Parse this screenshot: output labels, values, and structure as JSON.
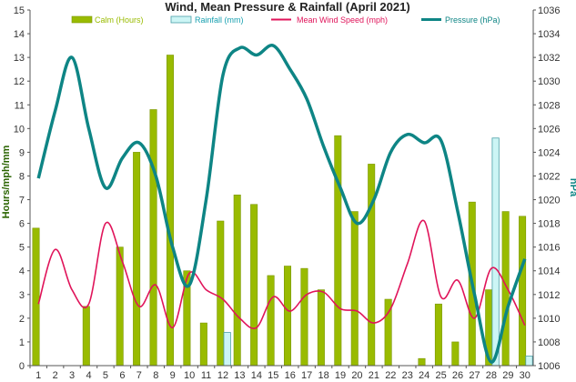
{
  "chart_data": {
    "type": "bar+line",
    "title": "Wind, Mean Pressure & Rainfall (April 2021)",
    "ylabel_left": "Hours/mph/mm",
    "ylabel_right": "hPa",
    "ylim_left": [
      0,
      15
    ],
    "ylim_right": [
      1006,
      1036
    ],
    "yticks_left": [
      "0",
      "1",
      "2",
      "3",
      "4",
      "5",
      "6",
      "7",
      "8",
      "9",
      "10",
      "11",
      "12",
      "13",
      "14",
      "15"
    ],
    "yticks_right": [
      "1006",
      "1008",
      "1010",
      "1012",
      "1014",
      "1016",
      "1018",
      "1020",
      "1022",
      "1024",
      "1026",
      "1028",
      "1030",
      "1032",
      "1034",
      "1036"
    ],
    "categories": [
      "1",
      "2",
      "3",
      "4",
      "5",
      "6",
      "7",
      "8",
      "9",
      "10",
      "11",
      "12",
      "13",
      "14",
      "15",
      "16",
      "17",
      "18",
      "19",
      "20",
      "21",
      "22",
      "23",
      "24",
      "25",
      "26",
      "27",
      "28",
      "29",
      "30"
    ],
    "grid": false,
    "legend_position": "top",
    "series": [
      {
        "name": "Calm (Hours)",
        "kind": "bar",
        "axis": "left",
        "color": "#99bb00",
        "values": [
          5.8,
          0,
          0,
          2.5,
          0,
          5.0,
          9.0,
          10.8,
          13.1,
          4.0,
          1.8,
          6.1,
          7.2,
          6.8,
          3.8,
          4.2,
          4.1,
          3.2,
          9.7,
          6.5,
          8.5,
          2.8,
          0,
          0.3,
          2.6,
          1.0,
          6.9,
          3.2,
          6.5,
          6.3
        ]
      },
      {
        "name": "Rainfall (mm)",
        "kind": "bar",
        "axis": "left",
        "color": "#ccf5f5",
        "values": [
          0,
          0,
          0,
          0,
          0,
          0,
          0,
          0,
          0,
          0,
          0,
          1.4,
          0,
          0,
          0,
          0,
          0,
          0,
          0,
          0,
          0,
          0,
          0,
          0,
          0,
          0,
          0,
          9.6,
          0,
          0.4
        ]
      },
      {
        "name": "Mean Wind Speed (mph)",
        "kind": "line",
        "axis": "left",
        "color": "#e0145a",
        "values": [
          2.6,
          4.9,
          3.2,
          2.6,
          6.0,
          4.4,
          2.5,
          3.4,
          1.6,
          3.9,
          3.2,
          2.8,
          2.0,
          1.6,
          2.9,
          2.3,
          3.0,
          3.1,
          2.4,
          2.3,
          1.8,
          2.4,
          4.3,
          6.1,
          2.9,
          3.6,
          2.0,
          4.1,
          3.2,
          1.7
        ]
      },
      {
        "name": "Pressure (hPa)",
        "kind": "line",
        "axis": "right",
        "color": "#0e8585",
        "values": [
          1021.8,
          1027.5,
          1032.0,
          1026.0,
          1021.0,
          1023.5,
          1024.8,
          1022.0,
          1016.0,
          1012.8,
          1020.0,
          1030.5,
          1032.8,
          1032.2,
          1033.0,
          1031.0,
          1028.5,
          1024.5,
          1021.0,
          1018.0,
          1020.0,
          1024.0,
          1025.5,
          1024.8,
          1025.0,
          1019.0,
          1012.0,
          1006.3,
          1011.0,
          1015.0
        ]
      }
    ]
  }
}
